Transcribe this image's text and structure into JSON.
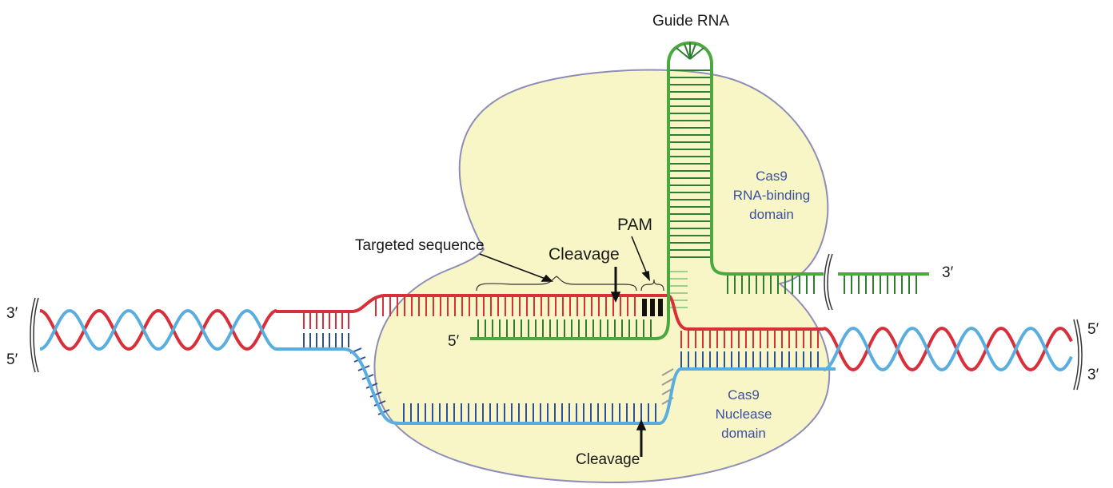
{
  "labels": {
    "guide_rna": "Guide RNA",
    "pam": "PAM",
    "targeted_sequence": "Targeted sequence",
    "cleavage_top": "Cleavage",
    "cleavage_bottom": "Cleavage",
    "cas9_rna_binding_1": "Cas9",
    "cas9_rna_binding_2": "RNA-binding",
    "cas9_rna_binding_3": "domain",
    "cas9_nuclease_1": "Cas9",
    "cas9_nuclease_2": "Nuclease",
    "cas9_nuclease_3": "domain"
  },
  "ends": {
    "left_top": "3′",
    "left_bottom": "5′",
    "right_top": "5′",
    "right_bottom": "3′",
    "guide_5": "5′",
    "rna_3": "3′"
  },
  "colors": {
    "protein_fill": "#f8f6c6",
    "protein_stroke": "#8d8db8",
    "dna_red": "#d92f3a",
    "dna_blue": "#5aaedf",
    "rna_green": "#4aa83f",
    "rung_green": "#2f7d2f",
    "rung_blue": "#2f4f9a",
    "pam_black": "#111111",
    "label_blue": "#3a4fa0"
  }
}
